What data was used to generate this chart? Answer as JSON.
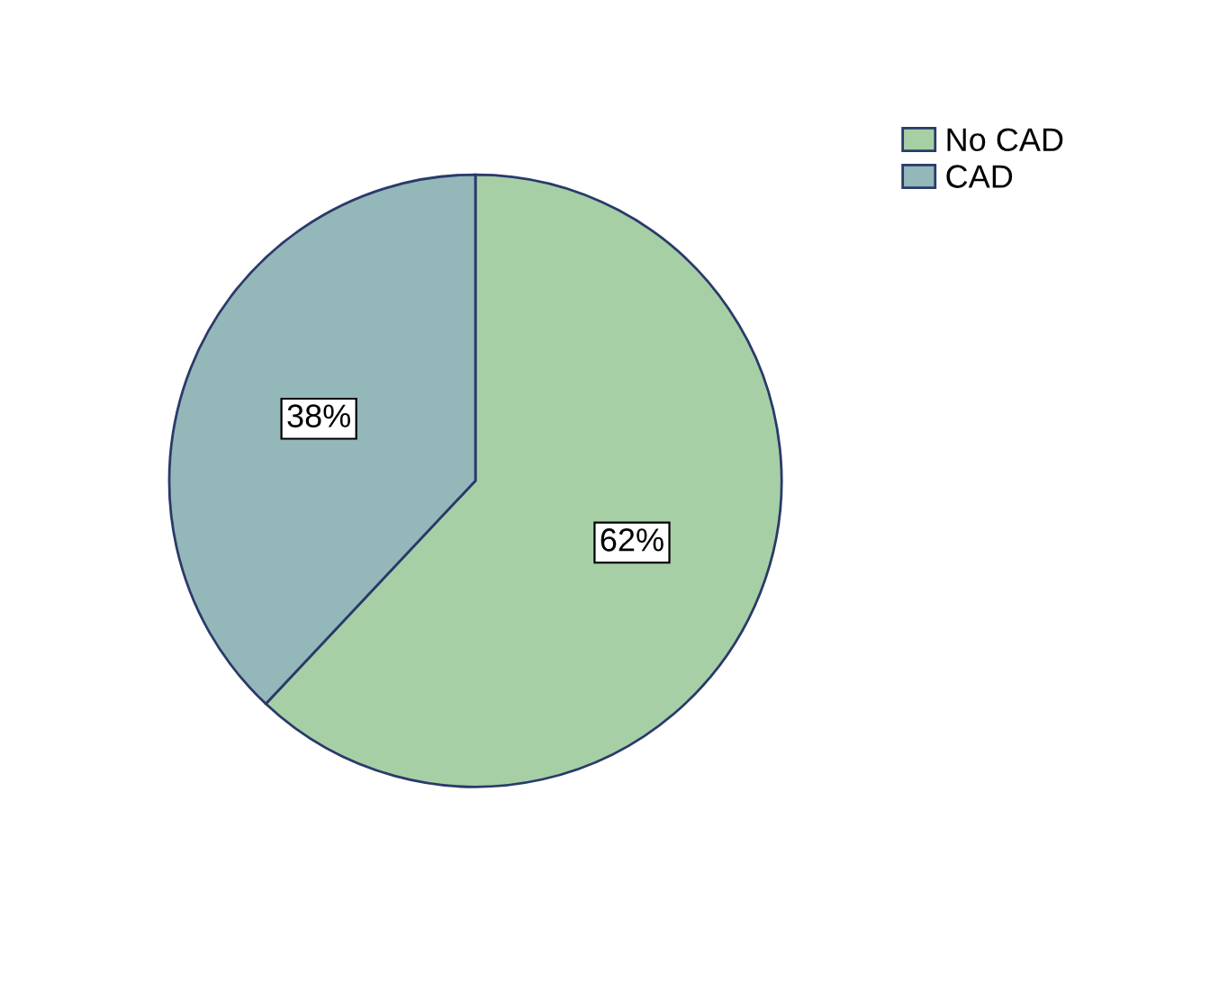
{
  "chart_data": {
    "type": "pie",
    "categories": [
      "No CAD",
      "CAD"
    ],
    "values": [
      62,
      38
    ],
    "colors": [
      "#a6cfa6",
      "#94b7b9"
    ],
    "value_labels": [
      "62%",
      "38%"
    ],
    "legend": "top right"
  }
}
